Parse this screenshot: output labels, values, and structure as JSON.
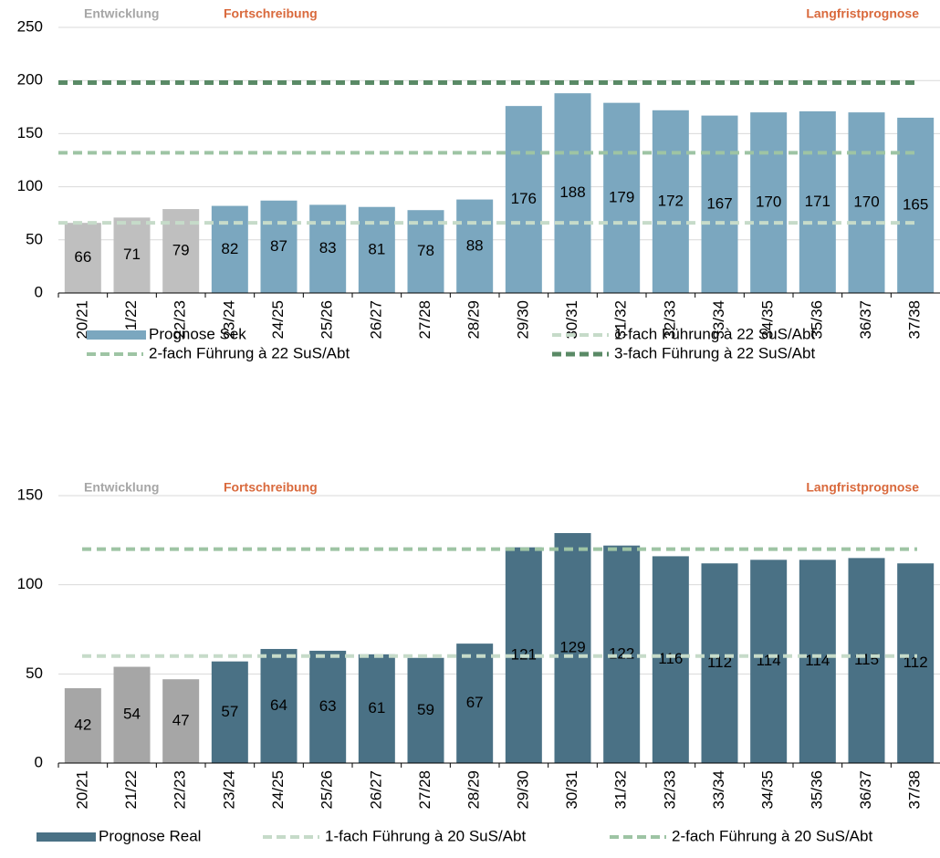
{
  "chart_data": [
    {
      "type": "bar",
      "annotations": [
        {
          "text": "Entwicklung",
          "color": "#a6a6a6"
        },
        {
          "text": "Fortschreibung",
          "color": "#d9693c"
        },
        {
          "text": "Langfristprognose",
          "color": "#d9693c"
        }
      ],
      "categories": [
        "20/21",
        "21/22",
        "22/23",
        "23/24",
        "24/25",
        "25/26",
        "26/27",
        "27/28",
        "28/29",
        "29/30",
        "30/31",
        "31/32",
        "32/33",
        "33/34",
        "34/35",
        "35/36",
        "36/37",
        "37/38"
      ],
      "series": [
        {
          "name": "Prognose Sek",
          "color": "#7ba7bf",
          "values": [
            66,
            71,
            79,
            82,
            87,
            83,
            81,
            78,
            88,
            176,
            188,
            179,
            172,
            167,
            170,
            171,
            170,
            165
          ]
        }
      ],
      "bar_colors": [
        "#bfbfbf",
        "#bfbfbf",
        "#bfbfbf",
        "#7ba7bf",
        "#7ba7bf",
        "#7ba7bf",
        "#7ba7bf",
        "#7ba7bf",
        "#7ba7bf",
        "#7ba7bf",
        "#7ba7bf",
        "#7ba7bf",
        "#7ba7bf",
        "#7ba7bf",
        "#7ba7bf",
        "#7ba7bf",
        "#7ba7bf",
        "#7ba7bf"
      ],
      "reference_lines": [
        {
          "name": "1-fach Führung à 22 SuS/Abt",
          "value": 66,
          "color": "#c6dbc9"
        },
        {
          "name": "2-fach Führung à 22 SuS/Abt",
          "value": 132,
          "color": "#9ec4a4"
        },
        {
          "name": "3-fach Führung à 22 SuS/Abt",
          "value": 198,
          "color": "#5a8a66"
        }
      ],
      "ylim": [
        0,
        250
      ],
      "yticks": [
        0,
        50,
        100,
        150,
        200,
        250
      ],
      "grid": true
    },
    {
      "type": "bar",
      "annotations": [
        {
          "text": "Entwicklung",
          "color": "#a6a6a6"
        },
        {
          "text": "Fortschreibung",
          "color": "#d9693c"
        },
        {
          "text": "Langfristprognose",
          "color": "#d9693c"
        }
      ],
      "categories": [
        "20/21",
        "21/22",
        "22/23",
        "23/24",
        "24/25",
        "25/26",
        "26/27",
        "27/28",
        "28/29",
        "29/30",
        "30/31",
        "31/32",
        "32/33",
        "33/34",
        "34/35",
        "35/36",
        "36/37",
        "37/38"
      ],
      "series": [
        {
          "name": "Prognose Real",
          "color": "#4a7185",
          "values": [
            42,
            54,
            47,
            57,
            64,
            63,
            61,
            59,
            67,
            121,
            129,
            122,
            116,
            112,
            114,
            114,
            115,
            112
          ]
        }
      ],
      "bar_colors": [
        "#a6a6a6",
        "#a6a6a6",
        "#a6a6a6",
        "#4a7185",
        "#4a7185",
        "#4a7185",
        "#4a7185",
        "#4a7185",
        "#4a7185",
        "#4a7185",
        "#4a7185",
        "#4a7185",
        "#4a7185",
        "#4a7185",
        "#4a7185",
        "#4a7185",
        "#4a7185",
        "#4a7185"
      ],
      "reference_lines": [
        {
          "name": "1-fach Führung à 20 SuS/Abt",
          "value": 60,
          "color": "#c6dbc9"
        },
        {
          "name": "2-fach Führung à 20 SuS/Abt",
          "value": 120,
          "color": "#9ec4a4"
        }
      ],
      "ylim": [
        0,
        150
      ],
      "yticks": [
        0,
        50,
        100,
        150
      ],
      "grid": true
    }
  ]
}
